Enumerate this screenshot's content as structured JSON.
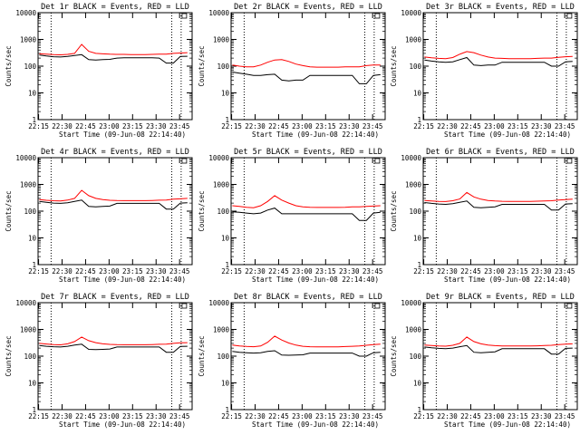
{
  "axes": {
    "xlabel": "Start Time (09-Jun-08 22:14:40)",
    "ylabel": "Counts/sec",
    "xticks": [
      "22:15",
      "22:30",
      "22:45",
      "23:00",
      "23:15",
      "23:30",
      "23:45"
    ],
    "yticks": [
      "10000",
      "1000",
      "100",
      "10",
      "1"
    ],
    "xlim": [
      "22:14:40",
      "23:53:00"
    ],
    "ylim": [
      1,
      10000
    ],
    "yscale": "log",
    "vlines": [
      "22:23:00",
      "23:40:00",
      "23:46:00"
    ]
  },
  "colors": {
    "events": "#000000",
    "lld": "#ff0000",
    "frame": "#000000",
    "background": "#ffffff"
  },
  "chart_data": [
    {
      "type": "line",
      "title": "Det 1r BLACK = Events, RED = LLD",
      "events_base": 230,
      "lld_base": 290,
      "series": [
        {
          "name": "Events",
          "values": [
            260,
            240,
            225,
            220,
            230,
            250,
            270,
            175,
            170,
            175,
            180,
            200,
            205,
            205,
            205,
            205,
            205,
            200,
            130,
            130,
            230,
            235
          ]
        },
        {
          "name": "LLD",
          "values": [
            290,
            280,
            270,
            265,
            275,
            300,
            650,
            360,
            300,
            290,
            280,
            275,
            275,
            270,
            270,
            270,
            275,
            280,
            280,
            300,
            310,
            320
          ]
        }
      ]
    },
    {
      "type": "line",
      "title": "Det 2r BLACK = Events, RED = LLD",
      "events_base": 45,
      "lld_base": 95,
      "series": [
        {
          "name": "Events",
          "values": [
            60,
            55,
            50,
            45,
            45,
            48,
            50,
            30,
            28,
            30,
            30,
            45,
            45,
            45,
            45,
            45,
            45,
            45,
            22,
            22,
            45,
            48
          ]
        },
        {
          "name": "LLD",
          "values": [
            110,
            100,
            95,
            95,
            110,
            140,
            170,
            175,
            150,
            120,
            105,
            95,
            92,
            92,
            92,
            92,
            95,
            95,
            95,
            105,
            110,
            110
          ]
        }
      ]
    },
    {
      "type": "line",
      "title": "Det 3r BLACK = Events, RED = LLD",
      "events_base": 140,
      "lld_base": 200,
      "series": [
        {
          "name": "Events",
          "values": [
            170,
            155,
            145,
            140,
            145,
            175,
            210,
            110,
            105,
            110,
            110,
            140,
            140,
            140,
            140,
            140,
            140,
            140,
            100,
            100,
            145,
            150
          ]
        },
        {
          "name": "LLD",
          "values": [
            220,
            205,
            195,
            190,
            210,
            280,
            350,
            320,
            260,
            220,
            200,
            195,
            190,
            190,
            190,
            190,
            195,
            200,
            200,
            215,
            225,
            230
          ]
        }
      ]
    },
    {
      "type": "line",
      "title": "Det 4r BLACK = Events, RED = LLD",
      "events_base": 200,
      "lld_base": 260,
      "series": [
        {
          "name": "Events",
          "values": [
            230,
            215,
            200,
            195,
            205,
            230,
            260,
            150,
            145,
            150,
            155,
            195,
            195,
            195,
            195,
            195,
            195,
            195,
            120,
            120,
            200,
            205
          ]
        },
        {
          "name": "LLD",
          "values": [
            270,
            255,
            245,
            240,
            260,
            300,
            600,
            380,
            300,
            270,
            255,
            250,
            248,
            248,
            248,
            248,
            252,
            258,
            260,
            280,
            290,
            300
          ]
        }
      ]
    },
    {
      "type": "line",
      "title": "Det 5r BLACK = Events, RED = LLD",
      "events_base": 80,
      "lld_base": 140,
      "series": [
        {
          "name": "Events",
          "values": [
            95,
            90,
            85,
            80,
            85,
            110,
            130,
            80,
            80,
            80,
            80,
            80,
            80,
            80,
            80,
            80,
            80,
            80,
            45,
            45,
            85,
            90
          ]
        },
        {
          "name": "LLD",
          "values": [
            160,
            150,
            140,
            135,
            160,
            230,
            380,
            260,
            200,
            160,
            145,
            140,
            138,
            138,
            138,
            138,
            140,
            145,
            145,
            150,
            155,
            160
          ]
        }
      ]
    },
    {
      "type": "line",
      "title": "Det 6r BLACK = Events, RED = LLD",
      "events_base": 180,
      "lld_base": 240,
      "series": [
        {
          "name": "Events",
          "values": [
            210,
            195,
            185,
            180,
            190,
            215,
            240,
            140,
            135,
            140,
            145,
            180,
            180,
            180,
            180,
            180,
            180,
            180,
            110,
            110,
            185,
            190
          ]
        },
        {
          "name": "LLD",
          "values": [
            250,
            240,
            230,
            228,
            245,
            285,
            500,
            340,
            280,
            250,
            240,
            235,
            232,
            232,
            232,
            232,
            236,
            240,
            245,
            260,
            270,
            280
          ]
        }
      ]
    },
    {
      "type": "line",
      "title": "Det 7r BLACK = Events, RED = LLD",
      "events_base": 230,
      "lld_base": 280,
      "series": [
        {
          "name": "Events",
          "values": [
            250,
            235,
            225,
            220,
            235,
            260,
            280,
            180,
            175,
            180,
            185,
            220,
            220,
            220,
            220,
            220,
            220,
            220,
            140,
            140,
            230,
            235
          ]
        },
        {
          "name": "LLD",
          "values": [
            300,
            285,
            270,
            265,
            290,
            350,
            520,
            380,
            320,
            290,
            275,
            270,
            268,
            268,
            268,
            268,
            272,
            278,
            282,
            300,
            315,
            320
          ]
        }
      ]
    },
    {
      "type": "line",
      "title": "Det 8r BLACK = Events, RED = LLD",
      "events_base": 130,
      "lld_base": 220,
      "series": [
        {
          "name": "Events",
          "values": [
            150,
            140,
            135,
            130,
            135,
            150,
            160,
            110,
            108,
            110,
            112,
            130,
            130,
            130,
            130,
            130,
            130,
            130,
            100,
            100,
            135,
            140
          ]
        },
        {
          "name": "LLD",
          "values": [
            260,
            240,
            230,
            225,
            240,
            330,
            560,
            400,
            310,
            260,
            235,
            225,
            222,
            222,
            222,
            222,
            228,
            235,
            240,
            255,
            270,
            280
          ]
        }
      ]
    },
    {
      "type": "line",
      "title": "Det 9r BLACK = Events, RED = LLD",
      "events_base": 190,
      "lld_base": 250,
      "series": [
        {
          "name": "Events",
          "values": [
            220,
            205,
            195,
            190,
            200,
            225,
            250,
            140,
            135,
            140,
            145,
            190,
            190,
            190,
            190,
            190,
            190,
            190,
            120,
            120,
            195,
            200
          ]
        },
        {
          "name": "LLD",
          "values": [
            260,
            250,
            240,
            236,
            255,
            300,
            520,
            350,
            290,
            260,
            248,
            242,
            240,
            240,
            240,
            240,
            244,
            250,
            255,
            270,
            280,
            290
          ]
        }
      ]
    }
  ]
}
